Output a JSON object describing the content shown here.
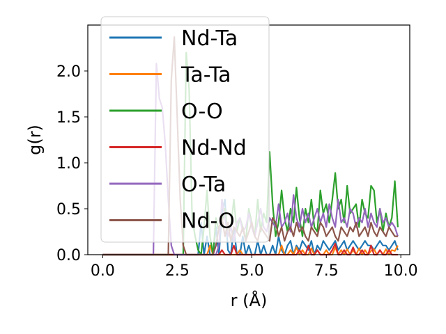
{
  "chart_data": {
    "type": "line",
    "xlabel": "r (Å)",
    "ylabel": "g(r)",
    "xlim": [
      -0.5,
      10.3
    ],
    "ylim": [
      0,
      2.5
    ],
    "xticks": [
      0.0,
      2.5,
      5.0,
      7.5,
      10.0
    ],
    "xtick_labels": [
      "0.0",
      "2.5",
      "5.0",
      "7.5",
      "10.0"
    ],
    "yticks": [
      0.0,
      0.5,
      1.0,
      1.5,
      2.0
    ],
    "ytick_labels": [
      "0.0",
      "0.5",
      "1.0",
      "1.5",
      "2.0"
    ],
    "legend_position": "upper-left",
    "x": [
      0.0,
      0.1,
      0.2,
      0.3,
      0.4,
      0.5,
      0.6,
      0.7,
      0.8,
      0.9,
      1.0,
      1.1,
      1.2,
      1.3,
      1.4,
      1.5,
      1.6,
      1.7,
      1.8,
      1.9,
      2.0,
      2.1,
      2.2,
      2.3,
      2.4,
      2.5,
      2.6,
      2.7,
      2.8,
      2.9,
      3.0,
      3.1,
      3.2,
      3.3,
      3.4,
      3.5,
      3.6,
      3.7,
      3.8,
      3.9,
      4.0,
      4.1,
      4.2,
      4.3,
      4.4,
      4.5,
      4.6,
      4.7,
      4.8,
      4.9,
      5.0,
      5.1,
      5.2,
      5.3,
      5.4,
      5.5,
      5.6,
      5.7,
      5.8,
      5.9,
      6.0,
      6.1,
      6.2,
      6.3,
      6.4,
      6.5,
      6.6,
      6.7,
      6.8,
      6.9,
      7.0,
      7.1,
      7.2,
      7.3,
      7.4,
      7.5,
      7.6,
      7.7,
      7.8,
      7.9,
      8.0,
      8.1,
      8.2,
      8.3,
      8.4,
      8.5,
      8.6,
      8.7,
      8.8,
      8.9,
      9.0,
      9.1,
      9.2,
      9.3,
      9.4,
      9.5,
      9.6,
      9.7,
      9.8,
      9.9
    ],
    "series": [
      {
        "name": "Nd-Ta",
        "color": "#1f77b4",
        "values": [
          0,
          0,
          0,
          0,
          0,
          0,
          0,
          0,
          0,
          0,
          0,
          0,
          0,
          0,
          0,
          0,
          0,
          0,
          0,
          0,
          0,
          0,
          0,
          0,
          0,
          0,
          0,
          0,
          0,
          0,
          0,
          0,
          0,
          0.35,
          0.0,
          0.2,
          0.0,
          0.0,
          0.3,
          0.0,
          0.45,
          0.6,
          0.05,
          0.0,
          0.3,
          0.0,
          0.0,
          0.2,
          0.0,
          0.1,
          0.0,
          0.0,
          0.15,
          0.0,
          0.1,
          0.0,
          0.0,
          0.1,
          0.0,
          0.2,
          0.05,
          0.0,
          0.1,
          0.15,
          0.0,
          0.1,
          0.05,
          0.15,
          0.1,
          0.05,
          0.15,
          0.0,
          0.1,
          0.05,
          0.15,
          0.1,
          0.05,
          0.1,
          0.15,
          0.05,
          0.1,
          0.15,
          0.05,
          0.1,
          0.15,
          0.1,
          0.05,
          0.1,
          0.15,
          0.1,
          0.1,
          0.05,
          0.1,
          0.15,
          0.1,
          0.1,
          0.05,
          0.1,
          0.15,
          0.05
        ]
      },
      {
        "name": "Ta-Ta",
        "color": "#ff7f0e",
        "values": [
          0,
          0,
          0,
          0,
          0,
          0,
          0,
          0,
          0,
          0,
          0,
          0,
          0,
          0,
          0,
          0,
          0,
          0,
          0,
          0,
          0,
          0,
          0,
          0,
          0,
          0,
          0,
          0,
          0,
          0,
          0,
          0,
          0,
          0,
          0,
          0,
          0.1,
          0.0,
          0.0,
          0.0,
          0.0,
          0.0,
          0.0,
          0.0,
          0.0,
          0.0,
          0.05,
          0.0,
          0.0,
          0.0,
          0.0,
          0.0,
          0.0,
          0.0,
          0.0,
          0.0,
          0.0,
          0.0,
          0.0,
          0.0,
          0.1,
          0.0,
          0.0,
          0.05,
          0.0,
          0.08,
          0.0,
          0.05,
          0.0,
          0.0,
          0.07,
          0.0,
          0.05,
          0.0,
          0.0,
          0.05,
          0.0,
          0.0,
          0.08,
          0.0,
          0.05,
          0.0,
          0.06,
          0.0,
          0.05,
          0.0,
          0.07,
          0.0,
          0.05,
          0.0,
          0.04,
          0.06,
          0.0,
          0.05,
          0.0,
          0.06,
          0.0,
          0.05,
          0.04,
          0.1
        ]
      },
      {
        "name": "O-O",
        "color": "#2ca02c",
        "values": [
          0,
          0,
          0,
          0,
          0,
          0,
          0,
          0,
          0,
          0,
          0,
          0,
          0,
          0,
          0,
          0,
          0,
          0,
          0,
          0,
          0,
          0,
          0,
          0,
          0,
          0,
          0,
          0,
          2.2,
          1.8,
          0.4,
          0.2,
          0.05,
          0.0,
          0.3,
          0.7,
          0.2,
          0.0,
          0.4,
          0.25,
          0.35,
          0.5,
          0.2,
          0.3,
          0.6,
          0.25,
          0.4,
          0.3,
          0.15,
          0.5,
          0.35,
          0.2,
          0.6,
          0.25,
          0.45,
          0.35,
          1.12,
          0.55,
          0.2,
          0.35,
          0.7,
          0.4,
          0.25,
          0.5,
          0.35,
          0.73,
          0.4,
          0.2,
          0.5,
          0.35,
          0.6,
          0.3,
          0.25,
          0.7,
          0.45,
          0.55,
          0.35,
          0.6,
          0.89,
          0.5,
          0.6,
          0.35,
          0.75,
          0.45,
          0.5,
          0.55,
          0.3,
          0.6,
          0.45,
          0.4,
          0.75,
          0.7,
          0.35,
          0.5,
          0.25,
          0.45,
          0.3,
          0.4,
          0.8,
          0.3
        ]
      },
      {
        "name": "Nd-Nd",
        "color": "#d62728",
        "values": [
          0,
          0,
          0,
          0,
          0,
          0,
          0,
          0,
          0,
          0,
          0,
          0,
          0,
          0,
          0,
          0,
          0,
          0,
          0,
          0,
          0,
          0,
          0,
          0,
          0,
          0,
          0,
          0,
          0,
          0,
          0,
          0,
          0,
          0,
          0,
          0,
          0,
          0,
          0,
          0.0,
          0.05,
          0.0,
          0.0,
          0.0,
          0.1,
          0.0,
          0.0,
          0.0,
          0.0,
          0.0,
          0.0,
          0.0,
          0.0,
          0.0,
          0.0,
          0.0,
          0.0,
          0.0,
          0.0,
          0.0,
          0.0,
          0.0,
          0.0,
          0.0,
          0.0,
          0.0,
          0.05,
          0.0,
          0.0,
          0.1,
          0.0,
          0.0,
          0.05,
          0.0,
          0.0,
          0.0,
          0.0,
          0.05,
          0.12,
          0.0,
          0.0,
          0.05,
          0.0,
          0.0,
          0.08,
          0.0,
          0.0,
          0.05,
          0.0,
          0.0,
          0.1,
          0.0,
          0.0,
          0.05,
          0.0,
          0.0,
          0.05,
          0.0,
          0.0,
          0.0
        ]
      },
      {
        "name": "O-Ta",
        "color": "#9467bd",
        "values": [
          0,
          0,
          0,
          0,
          0,
          0,
          0,
          0,
          0,
          0,
          0,
          0,
          0,
          0,
          0,
          0,
          0,
          0,
          2.08,
          1.7,
          1.6,
          1.2,
          0.6,
          0.1,
          0.0,
          0.0,
          0.0,
          0.0,
          0.0,
          0.0,
          0.0,
          0.0,
          0.0,
          0.0,
          0.0,
          0.0,
          0.0,
          0.0,
          0.0,
          0.1,
          0.6,
          0.4,
          0.2,
          0.3,
          0.15,
          0.35,
          0.4,
          0.25,
          0.3,
          0.45,
          0.3,
          0.2,
          0.35,
          0.5,
          0.3,
          0.25,
          0.4,
          0.35,
          0.3,
          0.55,
          0.3,
          0.35,
          0.45,
          0.25,
          0.65,
          0.4,
          0.3,
          0.5,
          0.35,
          0.45,
          0.3,
          0.4,
          0.5,
          0.35,
          0.45,
          0.3,
          0.55,
          0.4,
          0.3,
          0.6,
          0.35,
          0.4,
          0.3,
          0.5,
          0.45,
          0.3,
          0.4,
          0.35,
          0.5,
          0.3,
          0.45,
          0.35,
          0.3,
          0.5,
          0.35,
          0.4,
          0.3,
          0.35,
          0.3,
          0.2
        ]
      },
      {
        "name": "Nd-O",
        "color": "#8c564b",
        "values": [
          0,
          0,
          0,
          0,
          0,
          0,
          0,
          0,
          0,
          0,
          0,
          0,
          0,
          0,
          0,
          0,
          0,
          0,
          0,
          0,
          0,
          0,
          0,
          1.9,
          2.37,
          1.5,
          0.6,
          0.1,
          0.0,
          0.0,
          0.0,
          0.0,
          0.0,
          0.0,
          0.0,
          0.0,
          0.0,
          0.0,
          0.1,
          0.3,
          0.4,
          0.2,
          0.35,
          0.15,
          0.3,
          0.25,
          0.2,
          0.3,
          0.15,
          0.25,
          0.35,
          0.2,
          0.15,
          0.3,
          0.25,
          0.2,
          0.15,
          0.4,
          0.35,
          0.2,
          0.3,
          0.15,
          0.25,
          0.3,
          0.2,
          0.35,
          0.25,
          0.3,
          0.2,
          0.15,
          0.3,
          0.25,
          0.2,
          0.35,
          0.3,
          0.2,
          0.25,
          0.3,
          0.2,
          0.15,
          0.3,
          0.25,
          0.2,
          0.3,
          0.25,
          0.35,
          0.2,
          0.25,
          0.3,
          0.2,
          0.35,
          0.25,
          0.2,
          0.3,
          0.25,
          0.2,
          0.3,
          0.25,
          0.2,
          0.2
        ]
      }
    ]
  }
}
